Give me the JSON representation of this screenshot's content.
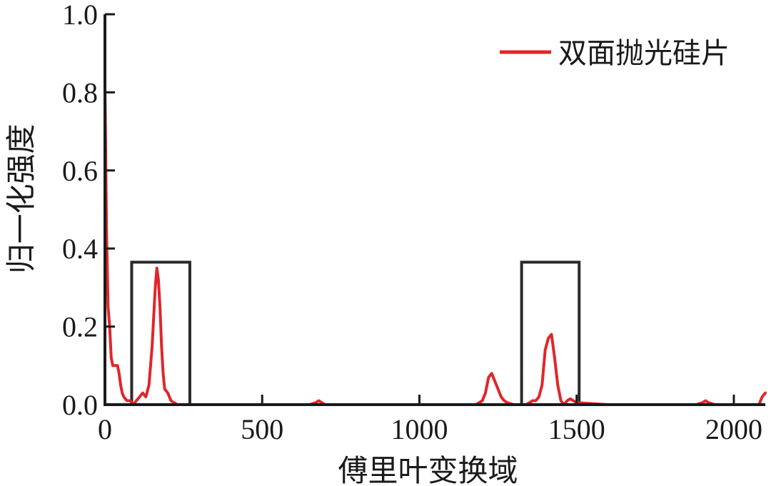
{
  "chart_data": {
    "type": "line",
    "title": "",
    "xlabel": "傅里叶变换域",
    "ylabel": "归一化强度",
    "xlim": [
      0,
      2100
    ],
    "ylim": [
      0,
      1.0
    ],
    "x_ticks": [
      0,
      500,
      1000,
      1500,
      2000
    ],
    "x_tick_labels": [
      "0",
      "500",
      "1000",
      "1500",
      "2000"
    ],
    "y_ticks": [
      0,
      0.2,
      0.4,
      0.6,
      0.8,
      1.0
    ],
    "y_tick_labels": [
      "0.0",
      "0.2",
      "0.4",
      "0.6",
      "0.8",
      "1.0"
    ],
    "grid": false,
    "legend_position": "top-right",
    "series": [
      {
        "name": "双面抛光硅片",
        "color": "#e0262b",
        "x": [
          0,
          5,
          10,
          15,
          20,
          25,
          30,
          35,
          40,
          45,
          50,
          55,
          60,
          70,
          80,
          90,
          100,
          110,
          120,
          130,
          140,
          150,
          160,
          165,
          170,
          175,
          180,
          185,
          190,
          200,
          210,
          220,
          230,
          240,
          250,
          260,
          300,
          400,
          500,
          650,
          670,
          680,
          690,
          700,
          800,
          900,
          1000,
          1100,
          1180,
          1200,
          1210,
          1220,
          1230,
          1240,
          1250,
          1260,
          1270,
          1280,
          1300,
          1320,
          1340,
          1360,
          1370,
          1380,
          1390,
          1400,
          1410,
          1420,
          1430,
          1440,
          1450,
          1460,
          1470,
          1480,
          1500,
          1600,
          1800,
          1880,
          1900,
          1910,
          1920,
          1940,
          2000,
          2080,
          2090,
          2100
        ],
        "y": [
          0.82,
          0.45,
          0.25,
          0.2,
          0.12,
          0.1,
          0.1,
          0.1,
          0.1,
          0.08,
          0.05,
          0.03,
          0.02,
          0.01,
          0.01,
          0.0,
          0.01,
          0.02,
          0.03,
          0.02,
          0.05,
          0.15,
          0.3,
          0.35,
          0.32,
          0.25,
          0.15,
          0.08,
          0.04,
          0.03,
          0.01,
          0.005,
          0.0,
          0.0,
          0.0,
          0.0,
          0.0,
          0.0,
          0.0,
          0.0,
          0.005,
          0.01,
          0.005,
          0.0,
          0.0,
          0.0,
          0.0,
          0.0,
          0.0,
          0.01,
          0.03,
          0.07,
          0.08,
          0.06,
          0.04,
          0.02,
          0.01,
          0.005,
          0.0,
          0.0,
          0.0,
          0.01,
          0.01,
          0.02,
          0.05,
          0.14,
          0.17,
          0.18,
          0.12,
          0.05,
          0.01,
          0.0,
          0.01,
          0.015,
          0.005,
          0.0,
          0.0,
          0.0,
          0.005,
          0.01,
          0.005,
          0.0,
          0.0,
          0.0,
          0.02,
          0.03
        ]
      }
    ],
    "annotations": [
      {
        "type": "box",
        "x0": 85,
        "x1": 270,
        "y0": 0,
        "y1": 0.365,
        "color": "#2a2a2a"
      },
      {
        "type": "box",
        "x0": 1325,
        "x1": 1508,
        "y0": 0,
        "y1": 0.365,
        "color": "#2a2a2a"
      }
    ]
  }
}
